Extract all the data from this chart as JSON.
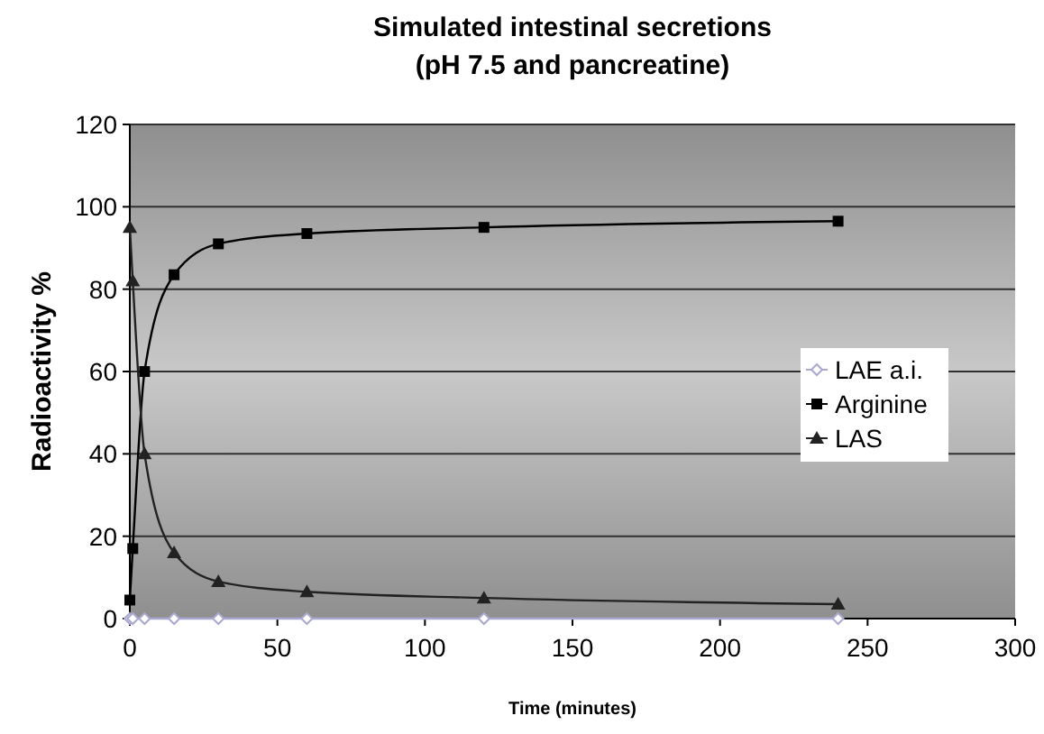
{
  "chart_data": {
    "type": "line",
    "title": "Simulated intestinal secretions\n(pH 7.5 and pancreatine)",
    "xlabel": "Time (minutes)",
    "ylabel": "Radioactivity %",
    "xlim": [
      0,
      300
    ],
    "xticks": [
      0,
      50,
      100,
      150,
      200,
      250,
      300
    ],
    "ylim": [
      0,
      120
    ],
    "yticks": [
      0,
      20,
      40,
      60,
      80,
      100,
      120
    ],
    "grid": "y",
    "legend": "right",
    "series": [
      {
        "name": "LAE a.i.",
        "color": "#a8a8d0",
        "marker": "diamond",
        "x": [
          0,
          1,
          5,
          15,
          30,
          60,
          120,
          240
        ],
        "values": [
          0,
          0,
          0,
          0,
          0,
          0,
          0,
          0
        ]
      },
      {
        "name": "Arginine",
        "color": "#000000",
        "marker": "square",
        "x": [
          0,
          1,
          5,
          15,
          30,
          60,
          120,
          240
        ],
        "values": [
          4.5,
          17,
          60,
          83.5,
          91,
          93.5,
          95,
          96.5
        ]
      },
      {
        "name": "LAS",
        "color": "#222222",
        "marker": "triangle",
        "x": [
          0,
          1,
          5,
          15,
          30,
          60,
          120,
          240
        ],
        "values": [
          95,
          82,
          40,
          16,
          9,
          6.5,
          5,
          3.5
        ]
      }
    ]
  }
}
